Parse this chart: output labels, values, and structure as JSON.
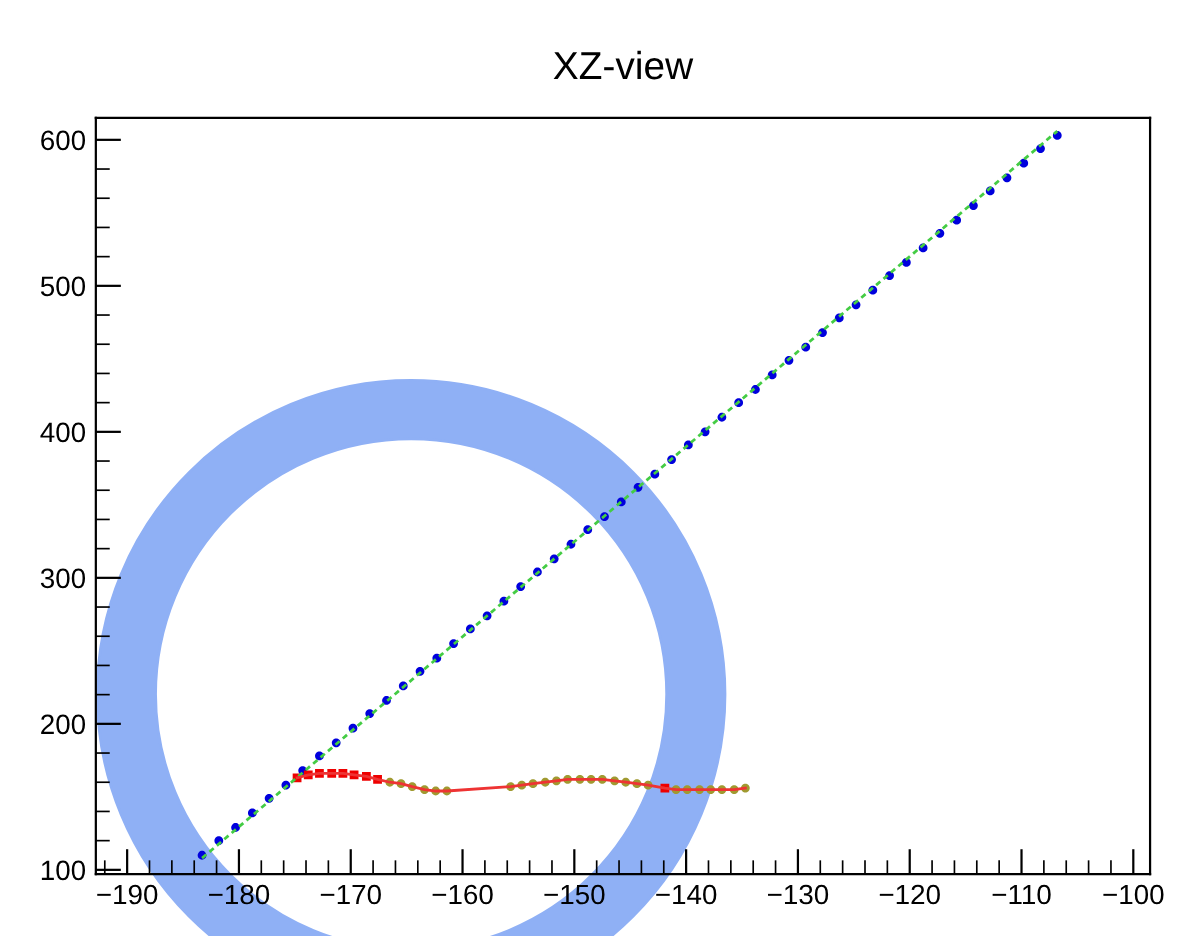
{
  "chart_data": {
    "type": "scatter",
    "title": "XZ-view",
    "xlim": [
      -192.8,
      -98.5
    ],
    "ylim": [
      97,
      615
    ],
    "xticks": [
      {
        "value": -190,
        "label": "−190"
      },
      {
        "value": -180,
        "label": "−180"
      },
      {
        "value": -170,
        "label": "−170"
      },
      {
        "value": -160,
        "label": "−160"
      },
      {
        "value": -150,
        "label": "−150"
      },
      {
        "value": -140,
        "label": "−140"
      },
      {
        "value": -130,
        "label": "−130"
      },
      {
        "value": -120,
        "label": "−120"
      },
      {
        "value": -110,
        "label": "−110"
      },
      {
        "value": -100,
        "label": "−100"
      }
    ],
    "yticks": [
      100,
      200,
      300,
      400,
      500,
      600
    ],
    "grid": false,
    "legend": false,
    "series": [
      {
        "type": "line",
        "color": "#44cc44",
        "line_style": "dashed",
        "marker": "none",
        "x": [
          -183.3,
          -106.8
        ],
        "values": [
          108,
          606
        ]
      },
      {
        "color": "#0000dd",
        "marker": "circle",
        "x": [
          -183.3,
          -181.8,
          -180.3,
          -178.8,
          -177.3,
          -175.8,
          -174.3,
          -172.8,
          -171.3,
          -169.8,
          -168.3,
          -166.8,
          -165.3,
          -163.8,
          -162.3,
          -160.8,
          -159.3,
          -157.8,
          -156.3,
          -154.8,
          -153.3,
          -151.8,
          -150.3,
          -148.8,
          -147.3,
          -145.8,
          -144.3,
          -142.8,
          -141.3,
          -139.8,
          -138.3,
          -136.8,
          -135.3,
          -133.8,
          -132.3,
          -130.8,
          -129.3,
          -127.8,
          -126.3,
          -124.8,
          -123.3,
          -121.8,
          -120.3,
          -118.8,
          -117.3,
          -115.8,
          -114.3,
          -112.8,
          -111.3,
          -109.8,
          -108.3,
          -106.8
        ],
        "values": [
          110,
          120,
          129,
          139,
          149,
          158,
          168,
          178,
          187,
          197,
          207,
          216,
          226,
          236,
          245,
          255,
          265,
          274,
          284,
          294,
          304,
          313,
          323,
          333,
          342,
          352,
          362,
          371,
          381,
          391,
          400,
          410,
          420,
          429,
          439,
          449,
          458,
          468,
          478,
          487,
          497,
          507,
          516,
          526,
          536,
          545,
          555,
          565,
          574,
          584,
          594,
          603
        ]
      },
      {
        "type": "line",
        "color": "#ee3333",
        "line_style": "solid",
        "marker": "none",
        "x": [
          -174.8,
          -173.8,
          -172.8,
          -171.7,
          -170.7,
          -169.7,
          -168.6,
          -167.6,
          -166.5,
          -165.5,
          -164.5,
          -163.4,
          -162.4,
          -161.4,
          -155.7,
          -154.7,
          -153.7,
          -152.6,
          -151.6,
          -150.6,
          -149.5,
          -148.5,
          -147.5,
          -146.4,
          -145.4,
          -144.4,
          -143.4,
          -141.9,
          -140.9,
          -139.9,
          -138.8,
          -137.8,
          -136.8,
          -135.7,
          -134.7
        ],
        "values": [
          163,
          165,
          166,
          166,
          166,
          165,
          164,
          162,
          160,
          159,
          157,
          155,
          154,
          154,
          157,
          158,
          159,
          160,
          161,
          162,
          162,
          162,
          162,
          161,
          160,
          159,
          158,
          156,
          155,
          155,
          155,
          155,
          155,
          155,
          156
        ]
      },
      {
        "color": "#ee0000",
        "marker": "square",
        "x": [
          -174.8,
          -173.8,
          -172.8,
          -171.7,
          -170.7,
          -169.7,
          -168.6,
          -167.6,
          -141.9
        ],
        "values": [
          163,
          165,
          166,
          166,
          166,
          165,
          164,
          162,
          156
        ]
      },
      {
        "color": "#a09a30",
        "marker": "circle",
        "x": [
          -166.5,
          -165.5,
          -164.5,
          -163.4,
          -162.4,
          -161.4,
          -155.7,
          -154.7,
          -153.7,
          -152.6,
          -151.6,
          -150.6,
          -149.5,
          -148.5,
          -147.5,
          -146.4,
          -145.4,
          -144.4,
          -143.4,
          -140.9,
          -139.9,
          -138.8,
          -137.8,
          -136.8,
          -135.7,
          -134.7
        ],
        "values": [
          160,
          159,
          157,
          155,
          154,
          154,
          157,
          158,
          159,
          160,
          161,
          162,
          162,
          162,
          162,
          161,
          160,
          159,
          158,
          155,
          155,
          155,
          155,
          155,
          155,
          156
        ]
      }
    ]
  }
}
